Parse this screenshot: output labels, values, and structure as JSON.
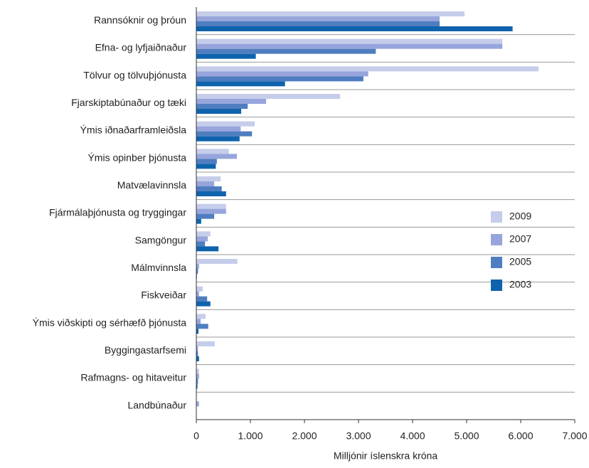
{
  "chart_data": {
    "type": "hbar",
    "x_label": "Milljónir íslenskra króna",
    "categories": [
      "Rannsóknir og þróun",
      "Efna- og lyfjaiðnaður",
      "Tölvur og tölvuþjónusta",
      "Fjarskiptabúnaður og tæki",
      "Ýmis iðnaðarframleiðsla",
      "Ýmis opinber þjónusta",
      "Matvælavinnsla",
      "Fjármálaþjónusta og tryggingar",
      "Samgöngur",
      "Málmvinnsla",
      "Fiskveiðar",
      "Ýmis viðskipti og sérhæfð þjónusta",
      "Byggingastarfsemi",
      "Rafmagns- og hitaveitur",
      "Landbúnaður"
    ],
    "series": [
      {
        "name": "2009",
        "color": "#c5cdea",
        "values": [
          4960,
          5660,
          6330,
          2660,
          1080,
          600,
          450,
          550,
          260,
          760,
          120,
          170,
          340,
          50,
          0
        ]
      },
      {
        "name": "2007",
        "color": "#97a5dc",
        "values": [
          4500,
          5660,
          3180,
          1290,
          820,
          750,
          330,
          550,
          210,
          50,
          50,
          80,
          30,
          50,
          50
        ]
      },
      {
        "name": "2005",
        "color": "#4f7ec0",
        "values": [
          4500,
          3320,
          3090,
          950,
          1030,
          380,
          470,
          330,
          160,
          30,
          200,
          220,
          30,
          30,
          0
        ]
      },
      {
        "name": "2003",
        "color": "#0f63ad",
        "values": [
          5850,
          1100,
          1640,
          830,
          800,
          360,
          550,
          90,
          410,
          10,
          260,
          40,
          50,
          20,
          0
        ]
      }
    ],
    "xlim": [
      0,
      7000
    ],
    "xticks": [
      0,
      {
        "value": 1000,
        "label": "1.000"
      },
      {
        "value": 2000,
        "label": "2.000"
      },
      {
        "value": 3000,
        "label": "3.000"
      },
      {
        "value": 4000,
        "label": "4.000"
      },
      {
        "value": 5000,
        "label": "5.000"
      },
      {
        "value": 6000,
        "label": "6.000"
      },
      {
        "value": 7000,
        "label": "7.000"
      }
    ],
    "legend": "right"
  }
}
